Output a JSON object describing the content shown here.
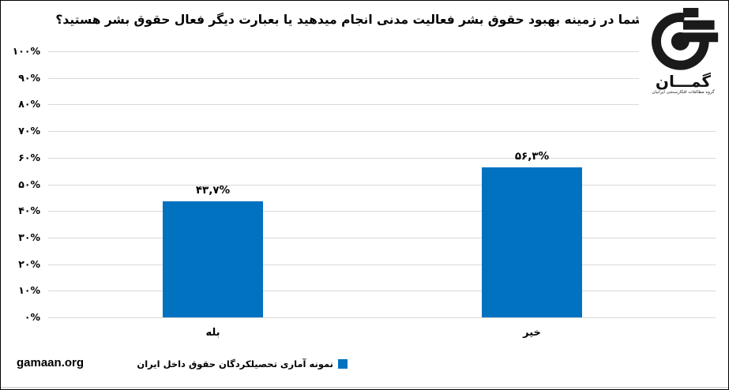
{
  "logo": {
    "name": "گمـــان",
    "tagline": "گروه مطالعات افکارسنجی ایرانیان"
  },
  "footer": {
    "website": "gamaan.org"
  },
  "legend": {
    "label": "نمونه آماری تحصیلکردگان حقوق داخل ایران",
    "color": "#0072C0"
  },
  "chart_data": {
    "type": "bar",
    "title": "آیا شما در زمینه بهبود حقوق بشر فعالیت مدنی انجام میدهید یا بعبارت دیگر فعال حقوق بشر هستید؟",
    "categories": [
      "بله",
      "خیر"
    ],
    "values": [
      43.7,
      56.3
    ],
    "value_labels": [
      "۴۳,۷%",
      "۵۶,۳%"
    ],
    "series": [
      {
        "name": "نمونه آماری تحصیلکردگان حقوق داخل ایران",
        "values": [
          43.7,
          56.3
        ]
      }
    ],
    "ylim": [
      0,
      100
    ],
    "ytick_step": 10,
    "ytick_labels": [
      "۰%",
      "۱۰%",
      "۲۰%",
      "۳۰%",
      "۴۰%",
      "۵۰%",
      "۶۰%",
      "۷۰%",
      "۸۰%",
      "۹۰%",
      "۱۰۰%"
    ],
    "xlabel": "",
    "ylabel": "",
    "bar_color": "#0072C0",
    "grid": true,
    "legend_position": "bottom"
  }
}
